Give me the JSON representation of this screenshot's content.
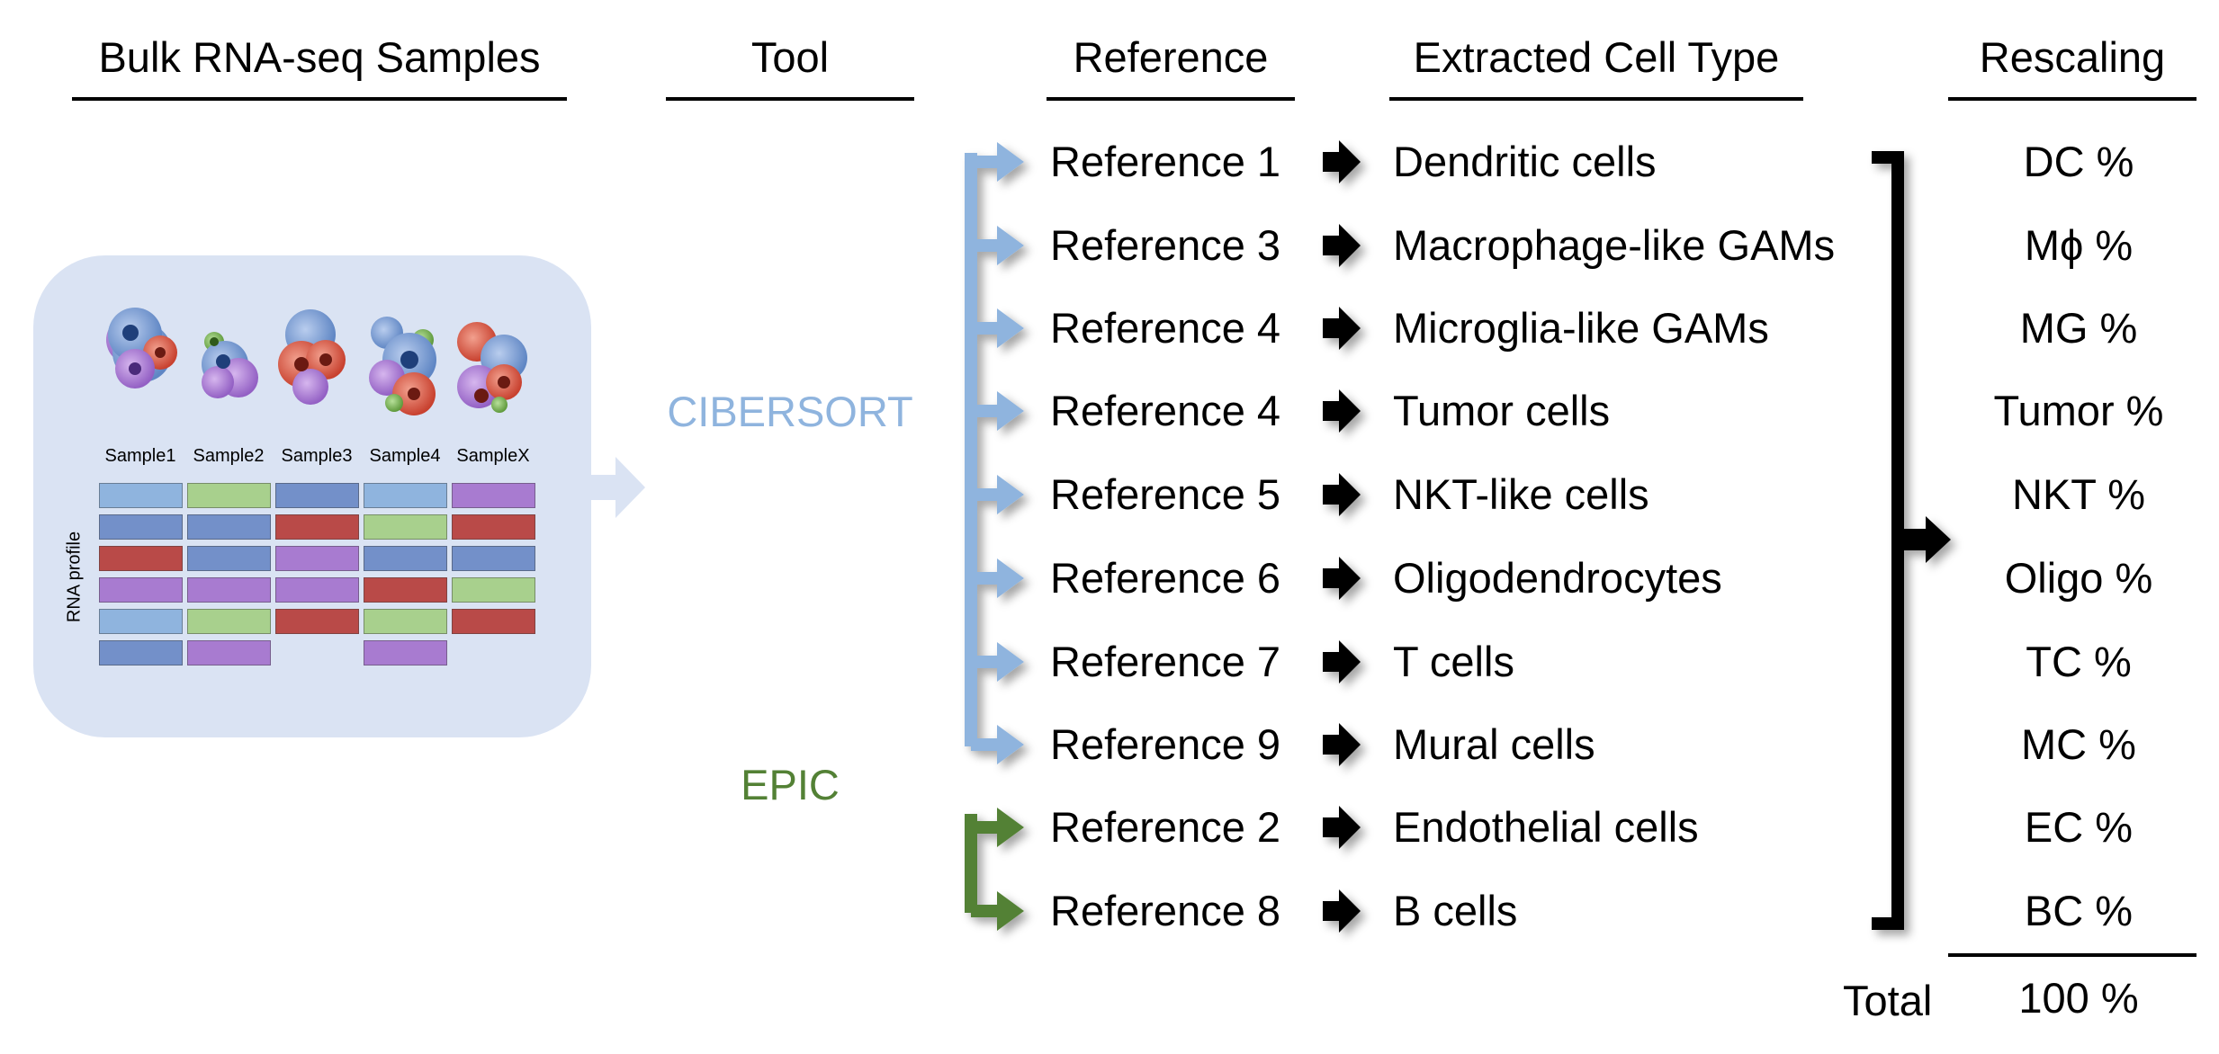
{
  "headers": {
    "samples": "Bulk RNA-seq Samples",
    "tool": "Tool",
    "reference": "Reference",
    "extracted": "Extracted Cell Type",
    "rescaling": "Rescaling"
  },
  "samples_panel": {
    "sample_labels": [
      "Sample1",
      "Sample2",
      "Sample3",
      "Sample4",
      "SampleX"
    ],
    "y_label": "RNA profile",
    "grid_colors": [
      [
        "blue",
        "green",
        "dblue",
        "blue",
        "purple"
      ],
      [
        "dblue",
        "dblue",
        "red",
        "green",
        "red"
      ],
      [
        "red",
        "dblue",
        "purple",
        "dblue",
        "dblue"
      ],
      [
        "purple",
        "purple",
        "purple",
        "red",
        "green"
      ],
      [
        "blue",
        "green",
        "red",
        "green",
        "red"
      ],
      [
        "dblue",
        "purple",
        "",
        "purple",
        ""
      ]
    ],
    "palette": {
      "blue": "#8fb4de",
      "green": "#a8d08d",
      "dblue": "#7390c9",
      "red": "#b94a48",
      "purple": "#a87bd0"
    }
  },
  "tools": {
    "cibersort": {
      "label": "CIBERSORT",
      "color": "#8fb4de"
    },
    "epic": {
      "label": "EPIC",
      "color": "#538135"
    }
  },
  "rows": [
    {
      "reference": "Reference 1",
      "cell_type": "Dendritic cells",
      "rescaled": "DC %",
      "tool": "cibersort"
    },
    {
      "reference": "Reference 3",
      "cell_type": "Macrophage-like GAMs",
      "rescaled": "Mϕ %",
      "tool": "cibersort"
    },
    {
      "reference": "Reference 4",
      "cell_type": "Microglia-like GAMs",
      "rescaled": "MG %",
      "tool": "cibersort"
    },
    {
      "reference": "Reference 4",
      "cell_type": "Tumor cells",
      "rescaled": "Tumor %",
      "tool": "cibersort"
    },
    {
      "reference": "Reference 5",
      "cell_type": "NKT-like cells",
      "rescaled": "NKT %",
      "tool": "cibersort"
    },
    {
      "reference": "Reference 6",
      "cell_type": "Oligodendrocytes",
      "rescaled": "Oligo %",
      "tool": "cibersort"
    },
    {
      "reference": "Reference 7",
      "cell_type": "T cells",
      "rescaled": "TC %",
      "tool": "cibersort"
    },
    {
      "reference": "Reference 9",
      "cell_type": "Mural cells",
      "rescaled": "MC %",
      "tool": "cibersort"
    },
    {
      "reference": "Reference 2",
      "cell_type": "Endothelial cells",
      "rescaled": "EC %",
      "tool": "epic"
    },
    {
      "reference": "Reference 8",
      "cell_type": "B cells",
      "rescaled": "BC %",
      "tool": "epic"
    }
  ],
  "total": {
    "label": "Total",
    "value": "100 %"
  }
}
